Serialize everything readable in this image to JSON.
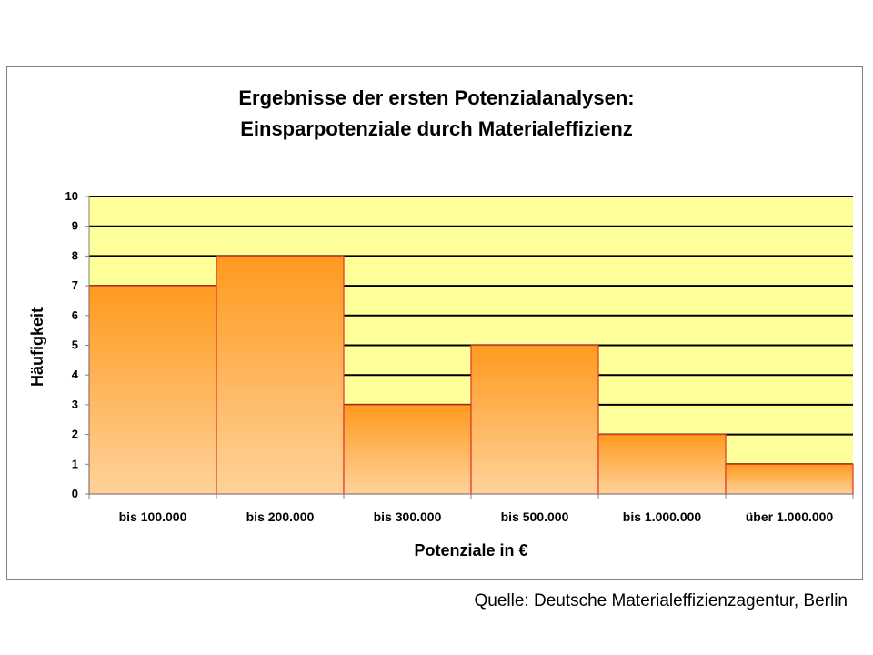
{
  "chart_data": {
    "type": "bar",
    "title_lines": [
      "Ergebnisse der ersten Potenzialanalysen:",
      "Einsparpotenziale durch Materialeffizienz"
    ],
    "categories": [
      "bis 100.000",
      "bis 200.000",
      "bis 300.000",
      "bis 500.000",
      "bis 1.000.000",
      "über 1.000.000"
    ],
    "values": [
      7,
      8,
      3,
      5,
      2,
      1
    ],
    "xlabel": "Potenziale in €",
    "ylabel": "Häufigkeit",
    "ylim": [
      0,
      10
    ],
    "yticks": [
      "0",
      "1",
      "2",
      "3",
      "4",
      "5",
      "6",
      "7",
      "8",
      "9",
      "10"
    ],
    "grid": true,
    "legend": "none",
    "colors": {
      "plot_background": "#ffff99",
      "bar_top": "#ff9a1e",
      "bar_bottom": "#ffd29a",
      "bar_edge": "#e0362a",
      "gridline": "#000000"
    }
  },
  "source": "Quelle: Deutsche Materialeffizienzagentur, Berlin"
}
